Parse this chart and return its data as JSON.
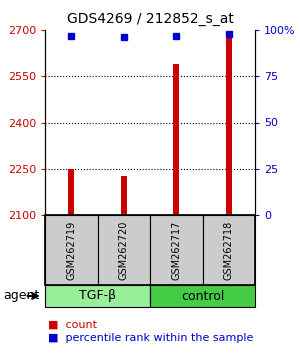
{
  "title": "GDS4269 / 212852_s_at",
  "samples": [
    "GSM262719",
    "GSM262720",
    "GSM262717",
    "GSM262718"
  ],
  "counts": [
    2250,
    2225,
    2590,
    2680
  ],
  "percentile_ranks": [
    97,
    96,
    97,
    98
  ],
  "ylim_left": [
    2100,
    2700
  ],
  "ylim_right": [
    0,
    100
  ],
  "yticks_left": [
    2100,
    2250,
    2400,
    2550,
    2700
  ],
  "yticks_right": [
    0,
    25,
    50,
    75,
    100
  ],
  "ytick_labels_left": [
    "2100",
    "2250",
    "2400",
    "2550",
    "2700"
  ],
  "ytick_labels_right": [
    "0",
    "25",
    "50",
    "75",
    "100%"
  ],
  "bar_color": "#cc0000",
  "dot_color": "#0000cc",
  "tgf_color": "#99ee99",
  "ctrl_color": "#44cc44",
  "left_axis_color": "#cc0000",
  "right_axis_color": "#0000cc",
  "background_color": "#ffffff",
  "bar_width": 0.12,
  "dot_size": 5
}
